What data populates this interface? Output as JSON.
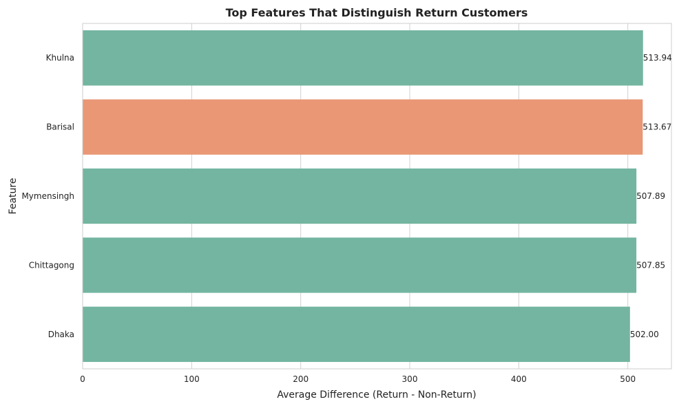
{
  "chart_data": {
    "type": "bar",
    "orientation": "horizontal",
    "title": "Top Features That Distinguish Return Customers",
    "xlabel": "Average Difference (Return - Non-Return)",
    "ylabel": "Feature",
    "categories": [
      "Khulna",
      "Barisal",
      "Mymensingh",
      "Chittagong",
      "Dhaka"
    ],
    "values": [
      513.94,
      513.67,
      507.89,
      507.85,
      502.0
    ],
    "value_labels": [
      "513.94",
      "513.67",
      "507.89",
      "507.85",
      "502.00"
    ],
    "bar_colors": [
      "#73b5a0",
      "#e99775",
      "#73b5a0",
      "#73b5a0",
      "#73b5a0"
    ],
    "xlim": [
      0,
      540
    ],
    "xticks": [
      0,
      100,
      200,
      300,
      400,
      500
    ],
    "xtick_labels": [
      "0",
      "100",
      "200",
      "300",
      "400",
      "500"
    ],
    "grid": true,
    "gridlines": "vertical",
    "grid_color": "#d0d0d0",
    "frame_color": "#cccccc"
  }
}
